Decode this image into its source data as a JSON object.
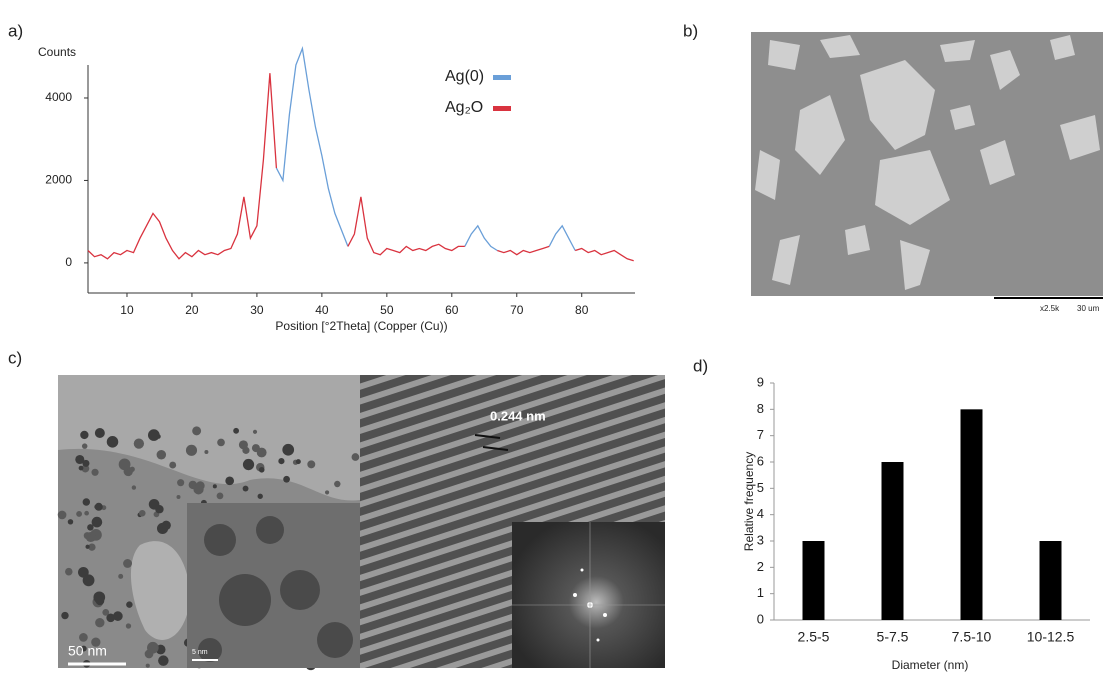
{
  "panels": {
    "a": "a)",
    "b": "b)",
    "c": "c)",
    "d": "d)"
  },
  "sem": {
    "magnification": "x2.5k",
    "scale": "30 um"
  },
  "tem": {
    "scale": "50 nm",
    "inset_scale": "5 nm",
    "d_spacing": "0.244 nm"
  },
  "chart_data": [
    {
      "type": "line",
      "y_label": "Counts",
      "x_label": "Position [°2Theta] (Copper (Cu))",
      "x": [
        4,
        5,
        6,
        7,
        8,
        9,
        10,
        11,
        12,
        13,
        14,
        15,
        16,
        17,
        18,
        19,
        20,
        21,
        22,
        23,
        24,
        25,
        26,
        27,
        28,
        29,
        30,
        31,
        32,
        33,
        34,
        35,
        36,
        37,
        38,
        39,
        40,
        41,
        42,
        43,
        44,
        45,
        46,
        47,
        48,
        49,
        50,
        51,
        52,
        53,
        54,
        55,
        56,
        57,
        58,
        59,
        60,
        61,
        62,
        63,
        64,
        65,
        66,
        67,
        68,
        69,
        70,
        71,
        72,
        73,
        74,
        75,
        76,
        77,
        78,
        79,
        80,
        81,
        82,
        83,
        84,
        85,
        86,
        87,
        88
      ],
      "series": [
        {
          "name": "Ag(0)",
          "color": "#6a9fd8",
          "values": [
            null,
            null,
            null,
            null,
            null,
            null,
            null,
            null,
            null,
            null,
            null,
            null,
            null,
            null,
            null,
            null,
            null,
            null,
            null,
            null,
            null,
            null,
            null,
            null,
            null,
            null,
            null,
            null,
            null,
            2300,
            2000,
            3600,
            4800,
            5200,
            4200,
            3300,
            2600,
            1800,
            1200,
            800,
            400,
            null,
            null,
            null,
            null,
            null,
            null,
            null,
            null,
            null,
            null,
            null,
            null,
            null,
            null,
            null,
            null,
            null,
            400,
            700,
            900,
            600,
            400,
            300,
            null,
            null,
            null,
            null,
            null,
            null,
            null,
            400,
            700,
            900,
            600,
            300,
            null,
            null,
            null,
            null,
            null,
            null,
            null,
            null,
            null
          ]
        },
        {
          "name": "Ag₂O",
          "color": "#d9333f",
          "values": [
            300,
            150,
            200,
            100,
            250,
            200,
            300,
            250,
            600,
            900,
            1200,
            1000,
            600,
            300,
            100,
            250,
            150,
            300,
            200,
            250,
            200,
            300,
            350,
            700,
            1600,
            600,
            900,
            2500,
            4600,
            2300,
            null,
            null,
            null,
            null,
            null,
            null,
            null,
            null,
            null,
            null,
            400,
            700,
            1600,
            600,
            250,
            200,
            350,
            300,
            250,
            400,
            300,
            350,
            300,
            400,
            450,
            350,
            300,
            400,
            400,
            null,
            null,
            null,
            null,
            300,
            250,
            300,
            200,
            300,
            250,
            300,
            350,
            400,
            null,
            null,
            null,
            300,
            350,
            250,
            300,
            200,
            250,
            300,
            200,
            100,
            50
          ]
        }
      ],
      "xlim": [
        4,
        88.2
      ],
      "xticks": [
        10,
        20,
        30,
        40,
        50,
        60,
        70,
        80
      ],
      "ylim": [
        -730,
        4800
      ],
      "yticks": [
        0,
        2000,
        4000
      ]
    },
    {
      "type": "bar",
      "y_label": "Relative frequency",
      "x_label": "Diameter (nm)",
      "categories": [
        "2.5-5",
        "5-7.5",
        "7.5-10",
        "10-12.5"
      ],
      "values": [
        3,
        6,
        8,
        3
      ],
      "color": "#000000",
      "ylim": [
        0,
        9
      ],
      "yticks": [
        0,
        1,
        2,
        3,
        4,
        5,
        6,
        7,
        8,
        9
      ]
    }
  ]
}
